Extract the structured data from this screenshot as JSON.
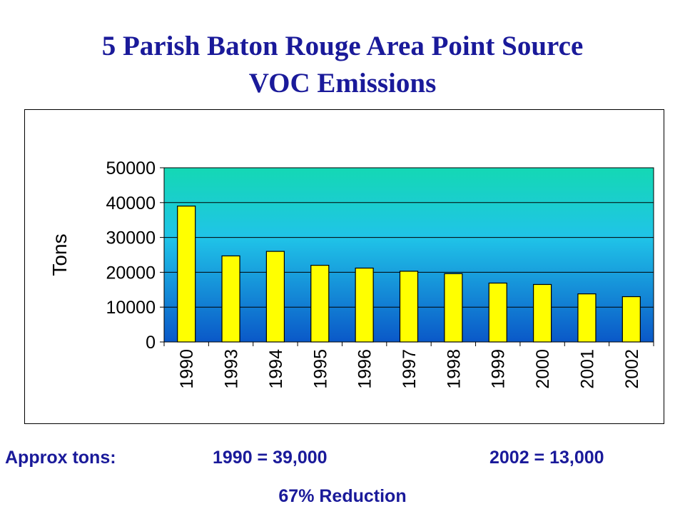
{
  "title": {
    "line1": "5 Parish Baton Rouge Area Point Source",
    "line2": "VOC Emissions"
  },
  "chart_data": {
    "type": "bar",
    "ylabel": "Tons",
    "xlabel": "",
    "categories": [
      "1990",
      "1993",
      "1994",
      "1995",
      "1996",
      "1997",
      "1998",
      "1999",
      "2000",
      "2001",
      "2002"
    ],
    "values": [
      39000,
      24700,
      26000,
      22000,
      21200,
      20300,
      19600,
      16900,
      16500,
      13800,
      13000
    ],
    "ylim": [
      0,
      50000
    ],
    "yticks": [
      "50000",
      "40000",
      "30000",
      "20000",
      "10000",
      "0"
    ],
    "grid": true,
    "legend": "none",
    "colors": {
      "bar_fill": "#ffff00",
      "bar_stroke": "#000000",
      "plot_bg_top": "#14d8b4",
      "plot_bg_mid": "#20c4e8",
      "plot_bg_bottom": "#0a58c8"
    }
  },
  "footer": {
    "approx_label": "Approx tons:",
    "y1990": "1990 = 39,000",
    "y2002": "2002 = 13,000",
    "reduction": "67% Reduction"
  }
}
